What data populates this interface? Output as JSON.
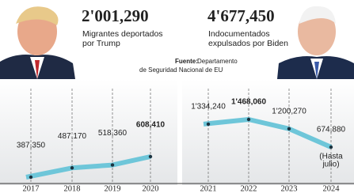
{
  "header": {
    "left_total": "2'001,290",
    "left_text": [
      "Migrantes deportados",
      "por Trump"
    ],
    "right_total": "4'677,450",
    "right_text": [
      "Indocumentados",
      "expulsados por Biden"
    ],
    "source_label": "Fuente:",
    "source": [
      "Departamento",
      "de Seguridad Nacional de EU"
    ]
  },
  "chart_data": [
    {
      "type": "line",
      "categories": [
        "2017",
        "2018",
        "2019",
        "2020"
      ],
      "values": [
        387350,
        487170,
        518360,
        608410
      ],
      "value_labels": [
        "387,350",
        "487,170",
        "518,360",
        "608,410"
      ],
      "color": "#6ec6d9"
    },
    {
      "type": "line",
      "categories": [
        "2021",
        "2022",
        "2023",
        "2024"
      ],
      "values": [
        1334240,
        1468060,
        1200270,
        674880
      ],
      "value_labels": [
        "1'334,240",
        "1'468,060",
        "1'200,270",
        "674,880"
      ],
      "color": "#6ec6d9",
      "note": [
        "(Hasta",
        "julio)"
      ]
    }
  ]
}
